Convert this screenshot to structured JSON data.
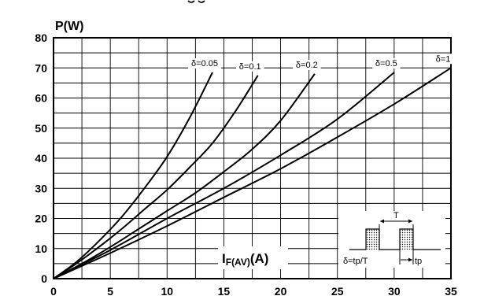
{
  "chart_data": {
    "type": "line",
    "ylabel": "P(W)",
    "xlabel_main": "I",
    "xlabel_sub": "F(AV)",
    "xlabel_unit": "(A)",
    "xlim": [
      0,
      35
    ],
    "ylim": [
      0,
      80
    ],
    "x_ticks": [
      "0",
      "5",
      "10",
      "15",
      "20",
      "25",
      "30",
      "35"
    ],
    "y_ticks": [
      "0",
      "10",
      "20",
      "30",
      "40",
      "50",
      "60",
      "70",
      "80"
    ],
    "grid": true,
    "series": [
      {
        "name": "δ=0.05",
        "x": [
          0,
          2,
          4,
          6,
          8,
          10,
          12,
          14
        ],
        "y": [
          0,
          5.5,
          12.5,
          20.5,
          30,
          40.5,
          53.5,
          68.5
        ]
      },
      {
        "name": "δ=0.1",
        "x": [
          0,
          2,
          4,
          6,
          8,
          10,
          12,
          14,
          16,
          18
        ],
        "y": [
          0,
          5,
          10.5,
          16.5,
          23,
          29.5,
          37,
          45,
          55.5,
          67.5
        ]
      },
      {
        "name": "δ=0.2",
        "x": [
          0,
          2.5,
          5,
          7.5,
          10,
          12.5,
          15,
          17.5,
          20,
          23
        ],
        "y": [
          0,
          5,
          10.5,
          16.5,
          22.5,
          28.5,
          35.5,
          43,
          52.5,
          68
        ]
      },
      {
        "name": "δ=0.5",
        "x": [
          0,
          5,
          10,
          15,
          20,
          25,
          30
        ],
        "y": [
          0,
          9.5,
          20,
          30,
          41,
          53,
          68.5
        ]
      },
      {
        "name": "δ=1",
        "x": [
          0,
          5,
          10,
          15,
          20,
          25,
          30,
          35
        ],
        "y": [
          0,
          8.5,
          17.5,
          27,
          36.5,
          47,
          58,
          70
        ]
      }
    ],
    "inset": {
      "period_label": "T",
      "pulse_label": "tp",
      "duty_label": "δ=tp/T"
    }
  }
}
